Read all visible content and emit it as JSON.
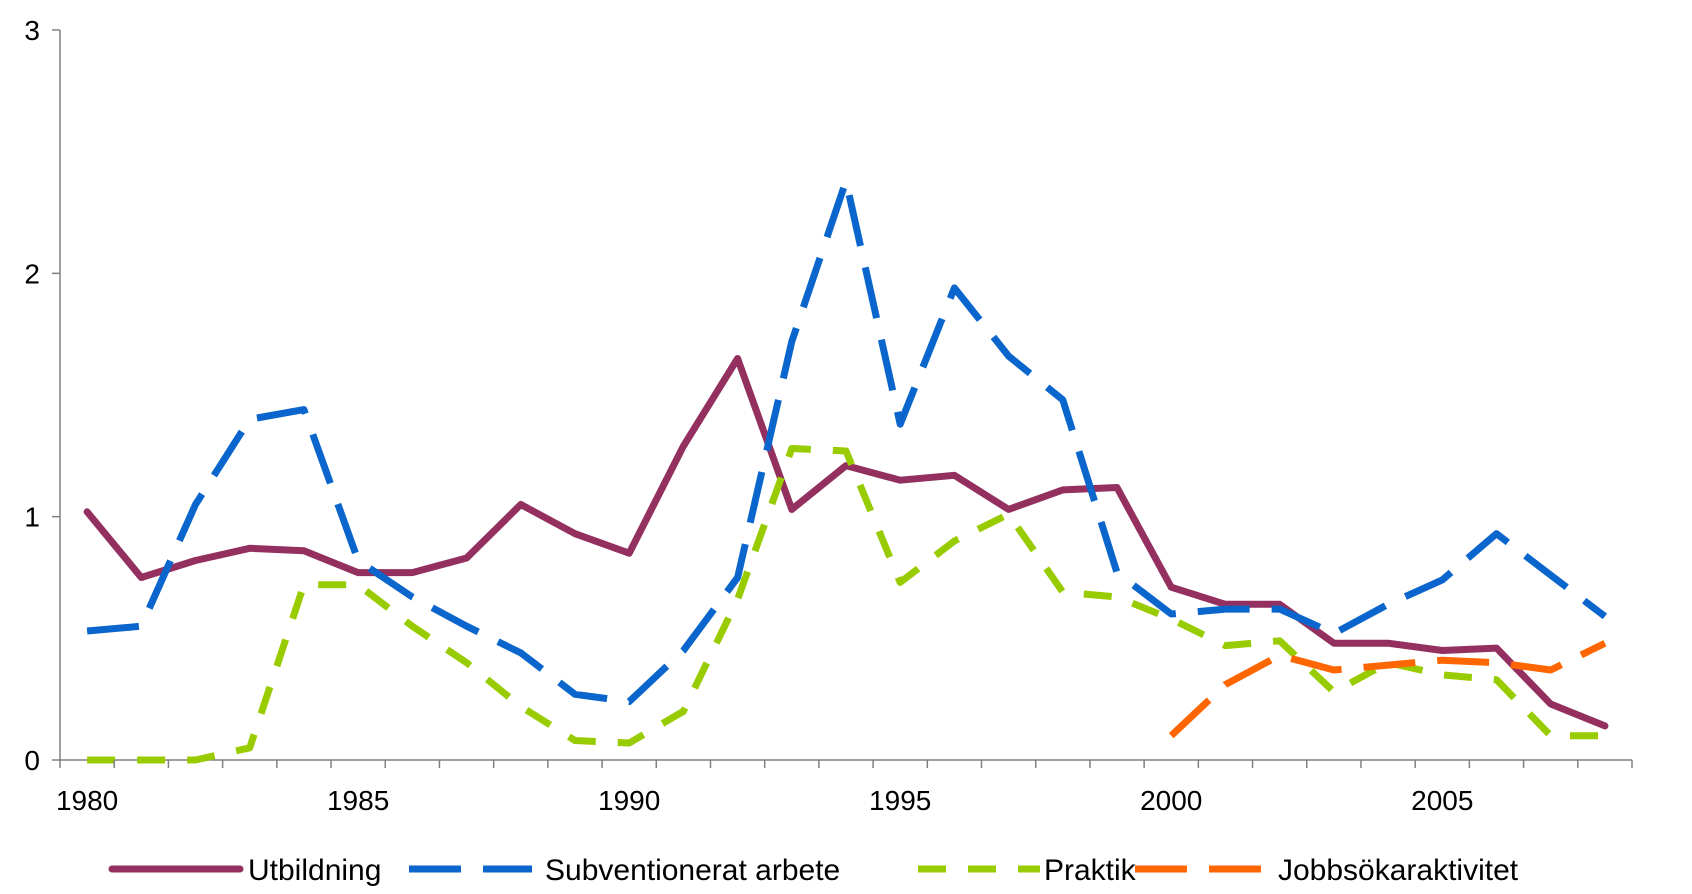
{
  "chart_data": {
    "type": "line",
    "title": "",
    "xlabel": "",
    "ylabel": "",
    "xlim": [
      1980,
      2008
    ],
    "ylim": [
      0,
      3
    ],
    "x_ticks_major": [
      1980,
      1985,
      1990,
      1995,
      2000,
      2005
    ],
    "x_tick_labels": [
      "1980",
      "1985",
      "1990",
      "1995",
      "2000",
      "2005"
    ],
    "y_ticks": [
      0,
      1,
      2,
      3
    ],
    "y_tick_labels": [
      "0",
      "1",
      "2",
      "3"
    ],
    "grid": false,
    "legend_position": "bottom",
    "x": [
      1980,
      1981,
      1982,
      1983,
      1984,
      1985,
      1986,
      1987,
      1988,
      1989,
      1990,
      1991,
      1992,
      1993,
      1994,
      1995,
      1996,
      1997,
      1998,
      1999,
      2000,
      2001,
      2002,
      2003,
      2004,
      2005,
      2006,
      2007,
      2008
    ],
    "series": [
      {
        "name": "Utbildning",
        "color": "#93305F",
        "dash": "solid",
        "values": [
          1.02,
          0.75,
          0.82,
          0.87,
          0.86,
          0.77,
          0.77,
          0.83,
          1.05,
          0.93,
          0.85,
          1.29,
          1.65,
          1.03,
          1.21,
          1.15,
          1.17,
          1.03,
          1.11,
          1.12,
          0.71,
          0.64,
          0.64,
          0.48,
          0.48,
          0.45,
          0.46,
          0.23,
          0.14
        ]
      },
      {
        "name": "Subventionerat arbete",
        "color": "#0A66CC",
        "dash": "long",
        "values": [
          0.53,
          0.55,
          1.05,
          1.4,
          1.44,
          0.82,
          0.67,
          0.55,
          0.44,
          0.27,
          0.24,
          0.45,
          0.75,
          1.72,
          2.38,
          1.38,
          1.94,
          1.66,
          1.48,
          0.77,
          0.6,
          0.62,
          0.62,
          0.52,
          0.64,
          0.74,
          0.93,
          0.76,
          0.59
        ]
      },
      {
        "name": "Praktik",
        "color": "#99CC00",
        "dash": "short",
        "values": [
          0.0,
          0.0,
          0.0,
          0.05,
          0.72,
          0.72,
          0.55,
          0.4,
          0.22,
          0.08,
          0.07,
          0.2,
          0.66,
          1.28,
          1.27,
          0.73,
          0.9,
          1.01,
          0.69,
          0.67,
          0.58,
          0.47,
          0.49,
          0.28,
          0.4,
          0.35,
          0.33,
          0.1,
          0.1
        ]
      },
      {
        "name": "Jobbsökaraktivitet",
        "color": "#FF6600",
        "dash": "long",
        "values": [
          null,
          null,
          null,
          null,
          null,
          null,
          null,
          null,
          null,
          null,
          null,
          null,
          null,
          null,
          null,
          null,
          null,
          null,
          null,
          null,
          0.1,
          0.31,
          0.43,
          0.37,
          0.39,
          0.41,
          0.4,
          0.37,
          0.48
        ]
      }
    ]
  }
}
